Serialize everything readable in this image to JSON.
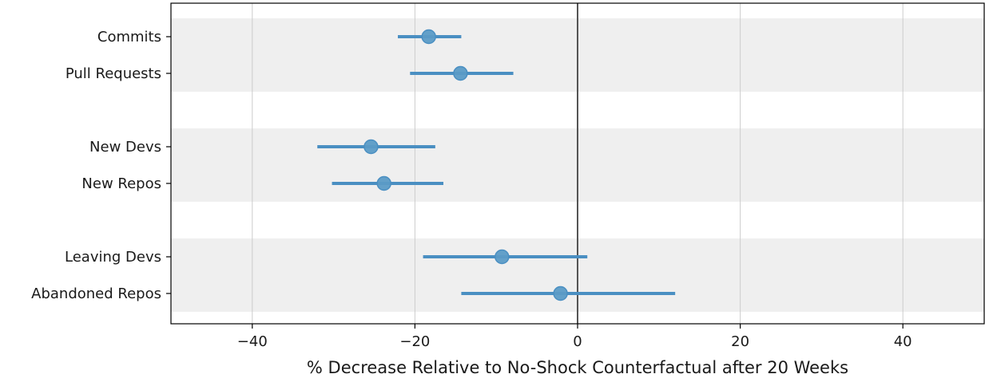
{
  "chart_data": {
    "type": "scatter",
    "subtype": "forest-plot",
    "title": "",
    "xlabel": "% Decrease Relative to No-Shock Counterfactual after 20 Weeks",
    "ylabel": "",
    "xlim": [
      -50,
      50
    ],
    "x_ticks": [
      -40,
      -20,
      0,
      20,
      40
    ],
    "x_tick_labels": [
      "−40",
      "−20",
      "0",
      "20",
      "40"
    ],
    "grid": "vertical",
    "reference_line_x": 0,
    "groups": [
      {
        "shaded": true,
        "rows": [
          {
            "label": "Commits",
            "estimate": -18.3,
            "ci_low": -22.1,
            "ci_high": -14.3
          },
          {
            "label": "Pull Requests",
            "estimate": -14.4,
            "ci_low": -20.6,
            "ci_high": -7.9
          }
        ]
      },
      {
        "shaded": true,
        "rows": [
          {
            "label": "New Devs",
            "estimate": -25.4,
            "ci_low": -32.0,
            "ci_high": -17.5
          },
          {
            "label": "New Repos",
            "estimate": -23.8,
            "ci_low": -30.2,
            "ci_high": -16.5
          }
        ]
      },
      {
        "shaded": true,
        "rows": [
          {
            "label": "Leaving Devs",
            "estimate": -9.3,
            "ci_low": -19.0,
            "ci_high": 1.2
          },
          {
            "label": "Abandoned Repos",
            "estimate": -2.1,
            "ci_low": -14.3,
            "ci_high": 12.0
          }
        ]
      }
    ],
    "colors": {
      "marker": "#5b9bc6",
      "errorbar": "#4a8fc2",
      "band": "#efefef",
      "grid": "#cccccc",
      "zero_line": "#555555",
      "axis": "#000000"
    }
  }
}
